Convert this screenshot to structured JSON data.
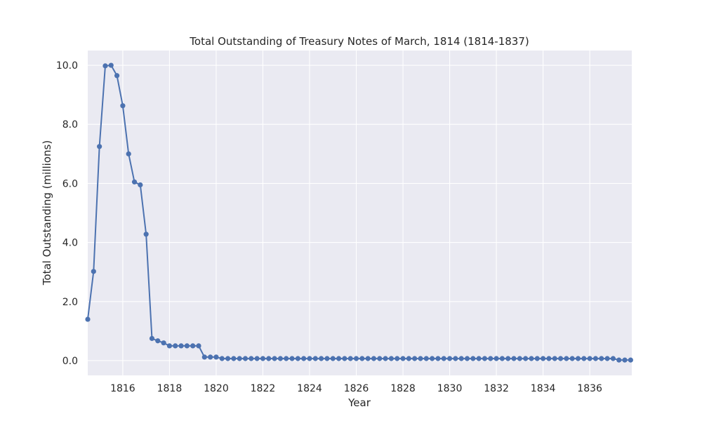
{
  "chart_data": {
    "type": "line",
    "title": "Total Outstanding of Treasury Notes of March, 1814 (1814-1837)",
    "xlabel": "Year",
    "ylabel": "Total Outstanding (millions)",
    "xlim": [
      1814.5,
      1837.8
    ],
    "ylim": [
      -0.5,
      10.5
    ],
    "x_ticks": [
      1816,
      1818,
      1820,
      1822,
      1824,
      1826,
      1828,
      1830,
      1832,
      1834,
      1836
    ],
    "x_tick_labels": [
      "1816",
      "1818",
      "1820",
      "1822",
      "1824",
      "1826",
      "1828",
      "1830",
      "1832",
      "1834",
      "1836"
    ],
    "y_ticks": [
      0,
      2,
      4,
      6,
      8,
      10
    ],
    "y_tick_labels": [
      "0.0",
      "2.0",
      "4.0",
      "6.0",
      "8.0",
      "10.0"
    ],
    "grid": true,
    "line_color": "#4c72b0",
    "background_color": "#eaeaf2",
    "series": [
      {
        "x": [
          1814.5,
          1814.75,
          1815.0,
          1815.25,
          1815.5,
          1815.75,
          1816.0,
          1816.25,
          1816.5,
          1816.75,
          1817.0,
          1817.25,
          1817.5,
          1817.75,
          1818.0,
          1818.25,
          1818.5,
          1818.75,
          1819.0,
          1819.25,
          1819.5,
          1819.75,
          1820.0,
          1820.25,
          1820.5,
          1820.75,
          1821.0,
          1821.25,
          1821.5,
          1821.75,
          1822.0,
          1822.25,
          1822.5,
          1822.75,
          1823.0,
          1823.25,
          1823.5,
          1823.75,
          1824.0,
          1824.25,
          1824.5,
          1824.75,
          1825.0,
          1825.25,
          1825.5,
          1825.75,
          1826.0,
          1826.25,
          1826.5,
          1826.75,
          1827.0,
          1827.25,
          1827.5,
          1827.75,
          1828.0,
          1828.25,
          1828.5,
          1828.75,
          1829.0,
          1829.25,
          1829.5,
          1829.75,
          1830.0,
          1830.25,
          1830.5,
          1830.75,
          1831.0,
          1831.25,
          1831.5,
          1831.75,
          1832.0,
          1832.25,
          1832.5,
          1832.75,
          1833.0,
          1833.25,
          1833.5,
          1833.75,
          1834.0,
          1834.25,
          1834.5,
          1834.75,
          1835.0,
          1835.25,
          1835.5,
          1835.75,
          1836.0,
          1836.25,
          1836.5,
          1836.75,
          1837.0,
          1837.25,
          1837.5,
          1837.75
        ],
        "y": [
          1.4,
          3.02,
          7.25,
          9.98,
          10.0,
          9.65,
          8.63,
          7.0,
          6.05,
          5.95,
          4.28,
          0.75,
          0.67,
          0.6,
          0.5,
          0.5,
          0.5,
          0.5,
          0.5,
          0.5,
          0.12,
          0.12,
          0.12,
          0.07,
          0.07,
          0.07,
          0.07,
          0.07,
          0.07,
          0.07,
          0.07,
          0.07,
          0.07,
          0.07,
          0.07,
          0.07,
          0.07,
          0.07,
          0.07,
          0.07,
          0.07,
          0.07,
          0.07,
          0.07,
          0.07,
          0.07,
          0.07,
          0.07,
          0.07,
          0.07,
          0.07,
          0.07,
          0.07,
          0.07,
          0.07,
          0.07,
          0.07,
          0.07,
          0.07,
          0.07,
          0.07,
          0.07,
          0.07,
          0.07,
          0.07,
          0.07,
          0.07,
          0.07,
          0.07,
          0.07,
          0.07,
          0.07,
          0.07,
          0.07,
          0.07,
          0.07,
          0.07,
          0.07,
          0.07,
          0.07,
          0.07,
          0.07,
          0.07,
          0.07,
          0.07,
          0.07,
          0.07,
          0.07,
          0.07,
          0.07,
          0.07,
          0.02,
          0.02,
          0.02
        ]
      }
    ]
  }
}
